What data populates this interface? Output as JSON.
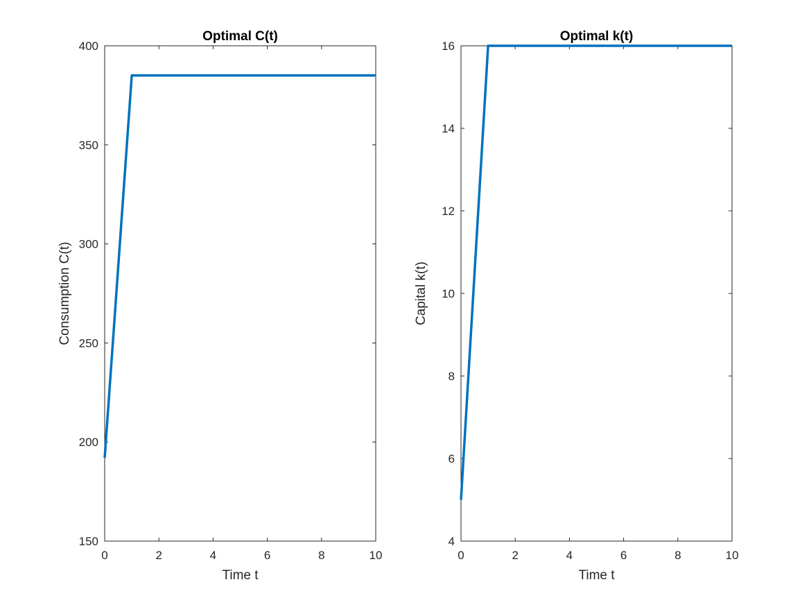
{
  "chart_data": [
    {
      "type": "line",
      "title": "Optimal C(t)",
      "xlabel": "Time t",
      "ylabel": "Consumption C(t)",
      "xlim": [
        0,
        10
      ],
      "ylim": [
        150,
        400
      ],
      "xticks": [
        0,
        2,
        4,
        6,
        8,
        10
      ],
      "yticks": [
        150,
        200,
        250,
        300,
        350,
        400
      ],
      "grid": false,
      "series": [
        {
          "color": "#0072BD",
          "x": [
            0,
            1,
            2,
            3,
            4,
            5,
            6,
            7,
            8,
            9,
            10
          ],
          "y": [
            192,
            385,
            385,
            385,
            385,
            385,
            385,
            385,
            385,
            385,
            385
          ]
        }
      ]
    },
    {
      "type": "line",
      "title": "Optimal k(t)",
      "xlabel": "Time t",
      "ylabel": "Capital k(t)",
      "xlim": [
        0,
        10
      ],
      "ylim": [
        4,
        16
      ],
      "xticks": [
        0,
        2,
        4,
        6,
        8,
        10
      ],
      "yticks": [
        4,
        6,
        8,
        10,
        12,
        14,
        16
      ],
      "grid": false,
      "series": [
        {
          "color": "#0072BD",
          "x": [
            0,
            1,
            2,
            3,
            4,
            5,
            6,
            7,
            8,
            9,
            10
          ],
          "y": [
            5,
            16,
            16,
            16,
            16,
            16,
            16,
            16,
            16,
            16,
            16
          ]
        }
      ]
    }
  ]
}
